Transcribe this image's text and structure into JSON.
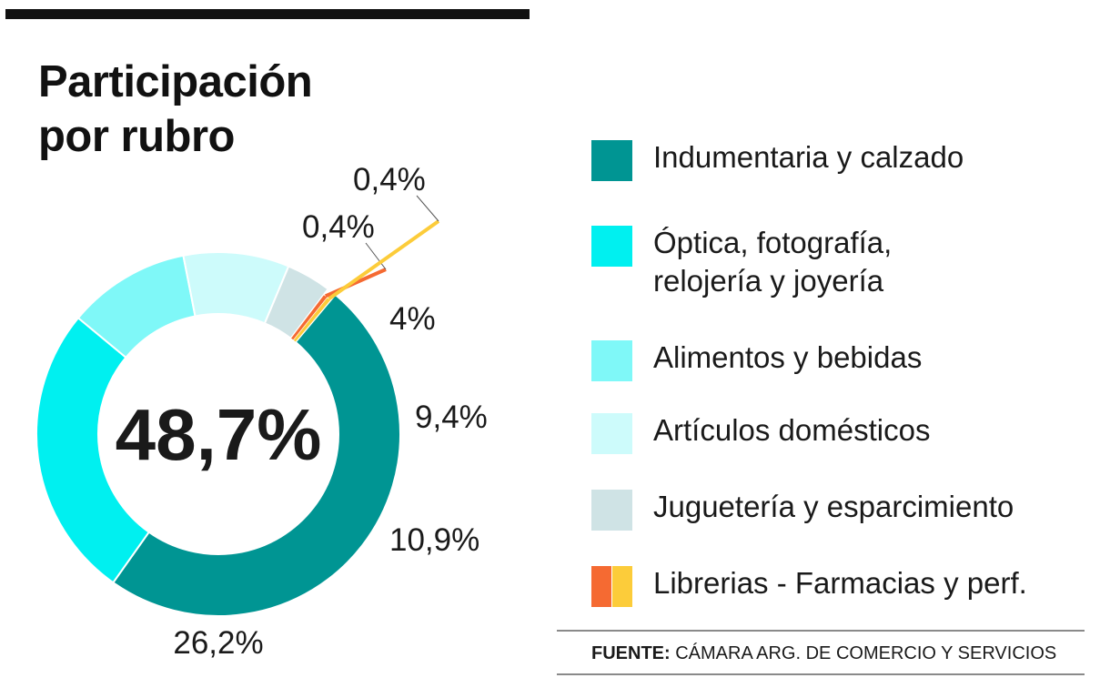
{
  "title_line1": "Participación",
  "title_line2": "por rubro",
  "chart_data": {
    "type": "pie",
    "donut": true,
    "title": "Participación por rubro",
    "center_label": "48,7%",
    "slices": [
      {
        "name": "Indumentaria y calzado",
        "value": 48.7,
        "label": "",
        "color": "#009593"
      },
      {
        "name": "Óptica, fotografía, relojería y joyería",
        "value": 26.2,
        "label": "26,2%",
        "color": "#00f0f0"
      },
      {
        "name": "Alimentos y bebidas",
        "value": 10.9,
        "label": "10,9%",
        "color": "#7ff8f8"
      },
      {
        "name": "Artículos domésticos",
        "value": 9.4,
        "label": "9,4%",
        "color": "#cdfbfb"
      },
      {
        "name": "Juguetería y esparcimiento",
        "value": 4,
        "label": "4%",
        "color": "#cfe3e5"
      },
      {
        "name": "Librerias",
        "value": 0.4,
        "label": "0,4%",
        "color": "#f56a32"
      },
      {
        "name": "Farmacias y perf.",
        "value": 0.4,
        "label": "0,4%",
        "color": "#fccc3a"
      }
    ],
    "legend_position": "right"
  },
  "legend": [
    {
      "lines": [
        "Indumentaria y calzado"
      ],
      "colors": [
        "#009593"
      ]
    },
    {
      "lines": [
        "Óptica, fotografía,",
        "relojería y joyería"
      ],
      "colors": [
        "#00f0f0"
      ]
    },
    {
      "lines": [
        "Alimentos y bebidas"
      ],
      "colors": [
        "#7ff8f8"
      ]
    },
    {
      "lines": [
        "Artículos domésticos"
      ],
      "colors": [
        "#cdfbfb"
      ]
    },
    {
      "lines": [
        "Juguetería y esparcimiento"
      ],
      "colors": [
        "#cfe3e5"
      ]
    },
    {
      "lines": [
        "Librerias - Farmacias y perf."
      ],
      "colors": [
        "#f56a32",
        "#fccc3a"
      ]
    }
  ],
  "source": {
    "label": "FUENTE:",
    "text": " CÁMARA ARG. DE COMERCIO Y SERVICIOS"
  }
}
